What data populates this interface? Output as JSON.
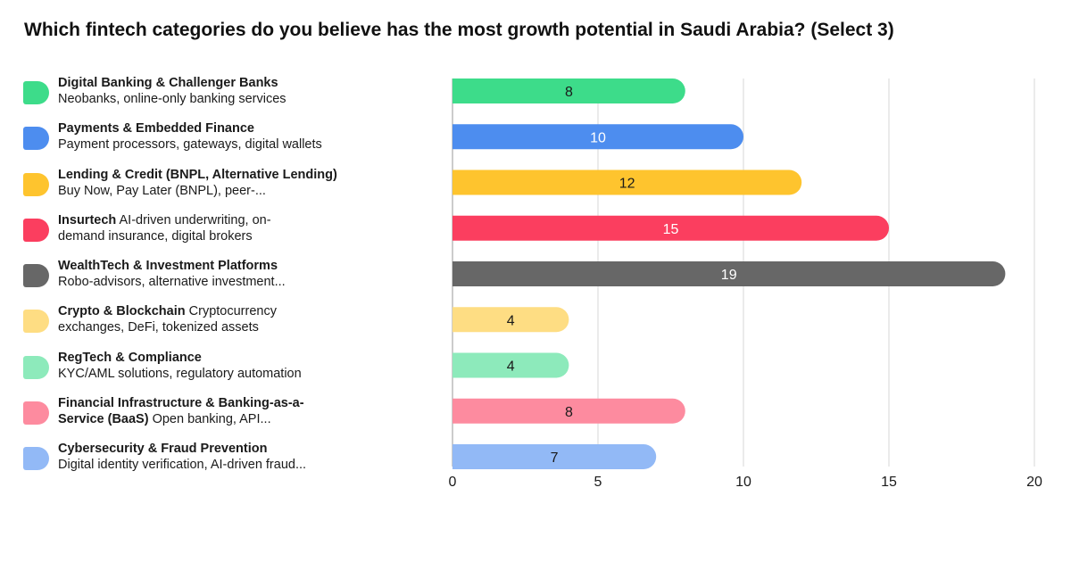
{
  "title": "Which fintech categories do you believe has the most growth potential in Saudi Arabia? (Select 3)",
  "chart_data": {
    "type": "bar",
    "orientation": "horizontal",
    "title": "Which fintech categories do you believe has the most growth potential in Saudi Arabia? (Select 3)",
    "xlim": [
      0,
      20
    ],
    "xticks": [
      "0",
      "5",
      "10",
      "15",
      "20"
    ],
    "grid": true,
    "legend_position": "left",
    "categories": [
      {
        "bold": "Digital Banking & Challenger Banks",
        "line2": "Neobanks, online-only banking services",
        "rest": "",
        "value": 8,
        "color": "#3ddc8a",
        "label_color": "#1a1a1a"
      },
      {
        "bold": "Payments & Embedded Finance",
        "line2": "Payment processors, gateways, digital wallets",
        "rest": "",
        "value": 10,
        "color": "#4d8def",
        "label_color": "#ffffff"
      },
      {
        "bold": "Lending & Credit (BNPL, Alternative Lending)",
        "line2": "Buy Now, Pay Later (BNPL), peer-...",
        "rest": "",
        "value": 12,
        "color": "#fec42e",
        "label_color": "#1a1a1a"
      },
      {
        "bold": "Insurtech",
        "rest": " AI-driven underwriting, on-",
        "line2": "demand insurance, digital brokers",
        "value": 15,
        "color": "#fb3e5f",
        "label_color": "#ffffff"
      },
      {
        "bold": "WealthTech & Investment Platforms",
        "line2": "Robo-advisors, alternative investment...",
        "rest": "",
        "value": 19,
        "color": "#676767",
        "label_color": "#ffffff"
      },
      {
        "bold": "Crypto & Blockchain",
        "rest": " Cryptocurrency",
        "line2": "exchanges, DeFi, tokenized assets",
        "value": 4,
        "color": "#fedd83",
        "label_color": "#1a1a1a"
      },
      {
        "bold": "RegTech & Compliance",
        "line2": "KYC/AML solutions, regulatory automation",
        "rest": "",
        "value": 4,
        "color": "#8deabb",
        "label_color": "#1a1a1a"
      },
      {
        "bold": "Financial Infrastructure & Banking-as-a-",
        "bold2": "Service (BaaS)",
        "line2": " Open banking, API...",
        "rest": "",
        "value": 8,
        "color": "#fd8b9f",
        "label_color": "#1a1a1a"
      },
      {
        "bold": "Cybersecurity & Fraud Prevention",
        "line2": "Digital identity verification, AI-driven fraud...",
        "rest": "",
        "value": 7,
        "color": "#92b9f6",
        "label_color": "#1a1a1a"
      }
    ]
  }
}
